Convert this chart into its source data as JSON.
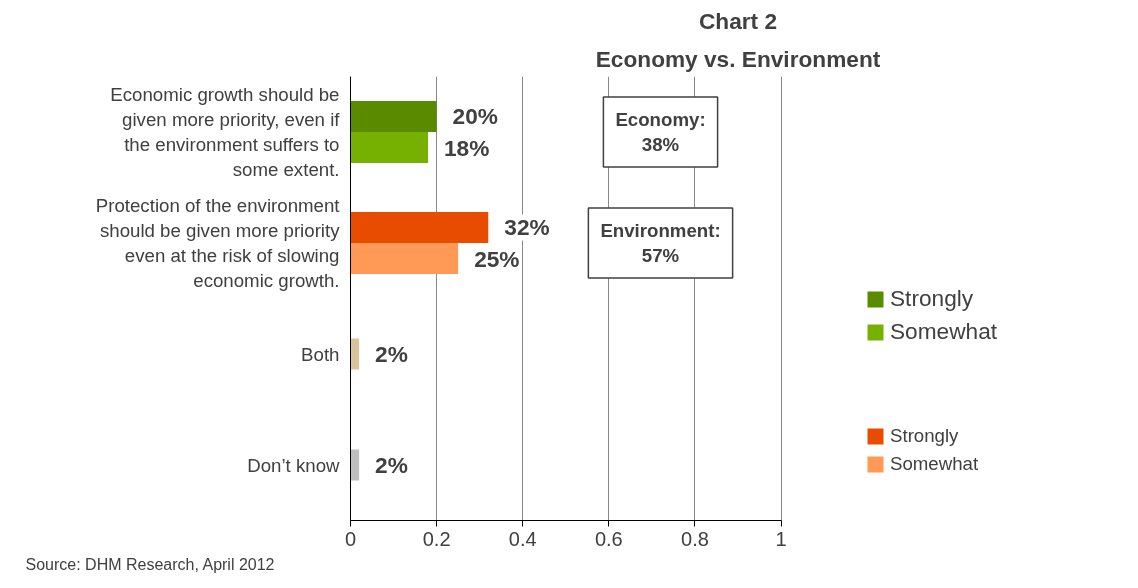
{
  "chart_data": {
    "type": "bar",
    "orientation": "horizontal",
    "title": "Chart 2",
    "subtitle": "Economy vs. Environment",
    "categories": [
      "Economic growth should be\ngiven more priority, even if\nthe environment suffers to\nsome extent.",
      "Protection of the environment\nshould be given more priority\neven at the risk of slowing\neconomic growth.",
      "Both",
      "Don’t know"
    ],
    "series": [
      {
        "name": "Strongly",
        "color": "#5a8a00",
        "values": [
          0.2,
          null,
          null,
          null
        ],
        "value_labels": [
          "20%",
          null,
          null,
          null
        ]
      },
      {
        "name": "Somewhat",
        "color": "#76b000",
        "values": [
          0.18,
          null,
          null,
          null
        ],
        "value_labels": [
          "18%",
          null,
          null,
          null
        ]
      },
      {
        "name": "Strongly",
        "color": "#e84c00",
        "values": [
          null,
          0.32,
          null,
          null
        ],
        "value_labels": [
          null,
          "32%",
          null,
          null
        ]
      },
      {
        "name": "Somewhat",
        "color": "#ff9955",
        "values": [
          null,
          0.25,
          null,
          null
        ],
        "value_labels": [
          null,
          "25%",
          null,
          null
        ]
      },
      {
        "color": "#d9c39a",
        "values": [
          null,
          null,
          0.02,
          null
        ],
        "value_labels": [
          null,
          null,
          "2%",
          null
        ]
      },
      {
        "color": "#bfbfbf",
        "values": [
          null,
          null,
          null,
          0.02
        ],
        "value_labels": [
          null,
          null,
          null,
          "2%"
        ]
      }
    ],
    "xlim": [
      0,
      1
    ],
    "xticks": [
      0,
      0.2,
      0.4,
      0.6,
      0.8,
      1
    ],
    "grid": "x",
    "legend": "right",
    "annotations": [
      "Economy:\n38%",
      "Environment:\n57%",
      "Source: DHM Research, April 2012"
    ]
  }
}
